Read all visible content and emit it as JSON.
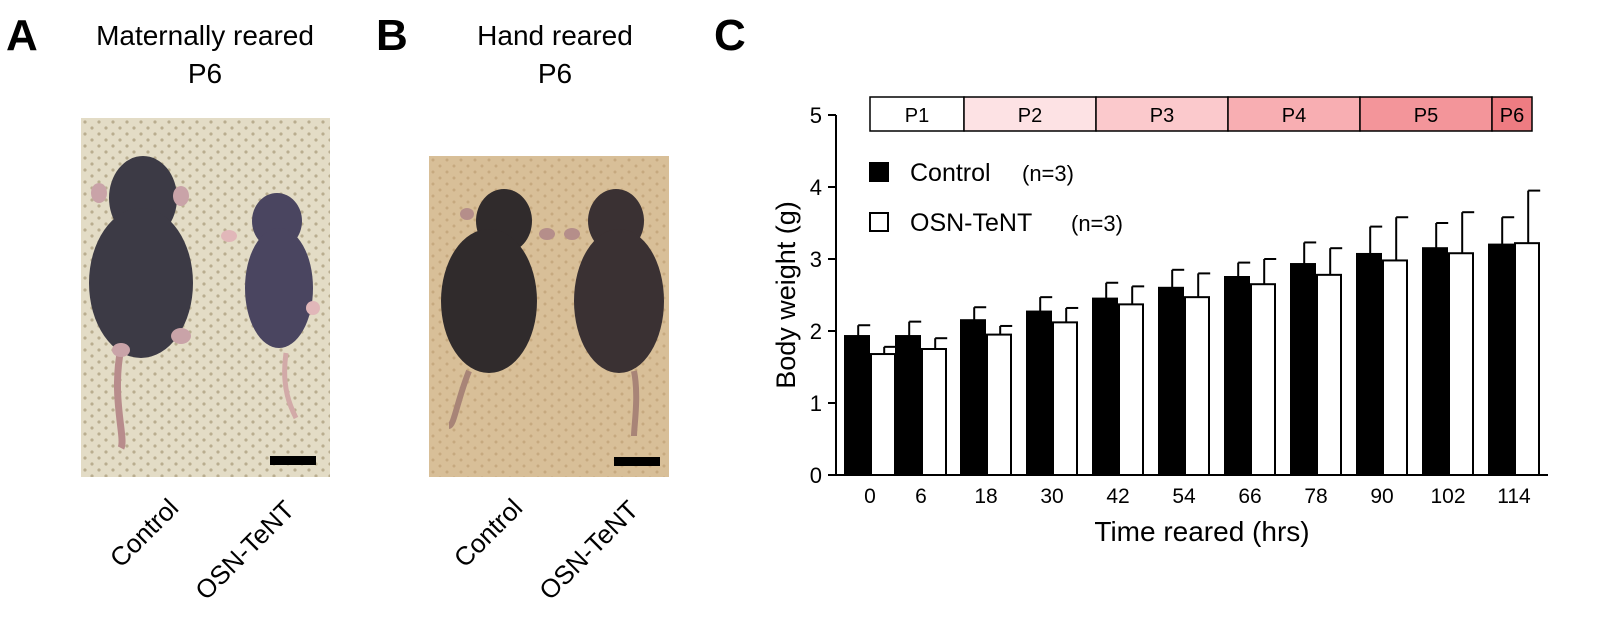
{
  "panels": {
    "a": {
      "letter": "A",
      "title_line1": "Maternally reared",
      "title_line2": "P6",
      "labels": [
        "Control",
        "OSN-TeNT"
      ]
    },
    "b": {
      "letter": "B",
      "title_line1": "Hand reared",
      "title_line2": "P6",
      "labels": [
        "Control",
        "OSN-TeNT"
      ]
    },
    "c": {
      "letter": "C"
    }
  },
  "colors": {
    "control": "#000000",
    "osn_tent": "#ffffff",
    "stages": [
      "#ffffff",
      "#fde2e4",
      "#fbc9cc",
      "#f8aeb2",
      "#f3959a",
      "#ee7c82"
    ],
    "fur_a_control": "#3c3a45",
    "fur_a_tent": "#4a4560",
    "mat_a": "#e3dcc6",
    "mat_b": "#d8bf98"
  },
  "chart_data": {
    "type": "bar",
    "xlabel": "Time reared (hrs)",
    "ylabel": "Body weight (g)",
    "ylim": [
      0,
      5
    ],
    "yticks": [
      0,
      1,
      2,
      3,
      4,
      5
    ],
    "grid": false,
    "legend_position": "top-left",
    "categories": [
      "0",
      "6",
      "18",
      "30",
      "42",
      "54",
      "66",
      "78",
      "90",
      "102",
      "114"
    ],
    "series": [
      {
        "name": "Control",
        "legend_n": "(n=3)",
        "values": [
          1.93,
          1.93,
          2.15,
          2.27,
          2.45,
          2.6,
          2.75,
          2.93,
          3.07,
          3.15,
          3.2
        ],
        "errors": [
          0.15,
          0.2,
          0.18,
          0.2,
          0.22,
          0.25,
          0.2,
          0.3,
          0.38,
          0.35,
          0.38
        ]
      },
      {
        "name": "OSN-TeNT",
        "legend_n": "(n=3)",
        "values": [
          1.68,
          1.75,
          1.95,
          2.12,
          2.37,
          2.47,
          2.65,
          2.78,
          2.98,
          3.08,
          3.22
        ],
        "errors": [
          0.1,
          0.15,
          0.12,
          0.2,
          0.25,
          0.33,
          0.35,
          0.37,
          0.6,
          0.57,
          0.73
        ]
      }
    ],
    "stages": [
      {
        "label": "P1",
        "from": 0,
        "to": 6
      },
      {
        "label": "P2",
        "from": 6,
        "to": 30
      },
      {
        "label": "P3",
        "from": 30,
        "to": 54
      },
      {
        "label": "P4",
        "from": 54,
        "to": 78
      },
      {
        "label": "P5",
        "from": 78,
        "to": 102
      },
      {
        "label": "P6",
        "from": 102,
        "to": 114
      }
    ]
  }
}
